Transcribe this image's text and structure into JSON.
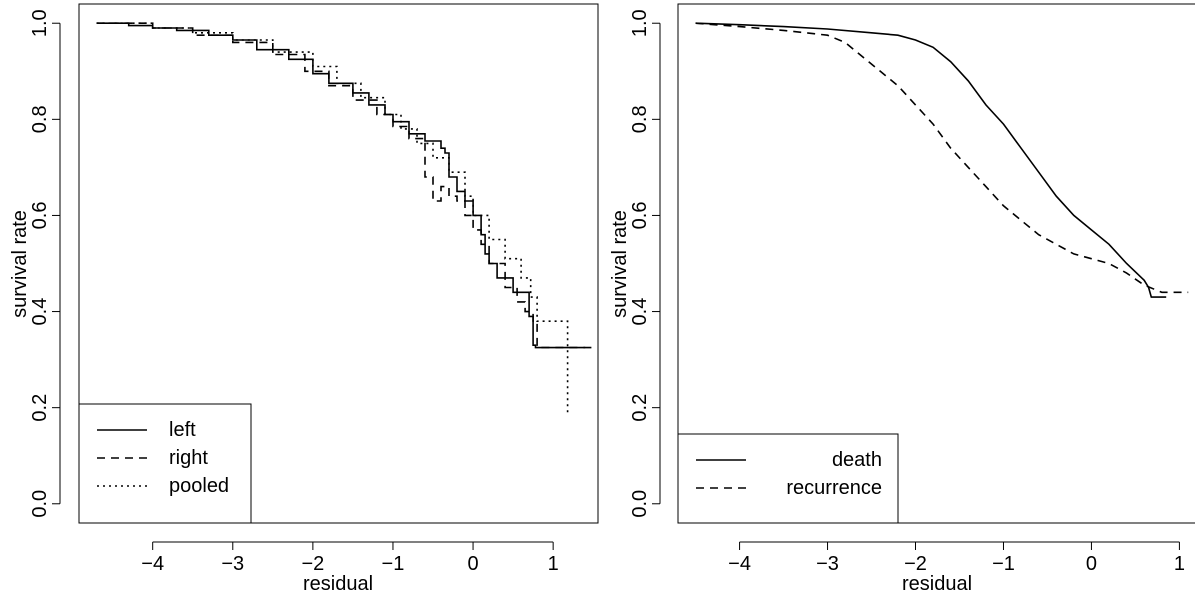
{
  "chart_data": [
    {
      "type": "line",
      "step": true,
      "title": "",
      "xlabel": "residual",
      "ylabel": "survival rate",
      "xlim": [
        -4.92,
        1.56
      ],
      "ylim": [
        -0.04,
        1.04
      ],
      "xticks": [
        -4,
        -3,
        -2,
        -1,
        0,
        1
      ],
      "yticks": [
        0.0,
        0.2,
        0.4,
        0.6,
        0.8,
        1.0
      ],
      "xtick_labels": [
        "−4",
        "−3",
        "−2",
        "−1",
        "0",
        "1"
      ],
      "ytick_labels": [
        "0.0",
        "0.2",
        "0.4",
        "0.6",
        "0.8",
        "1.0"
      ],
      "grid": false,
      "legend_position": "bottom-left",
      "legend_align": "left",
      "series": [
        {
          "name": "left",
          "style": "solid",
          "x": [
            -4.7,
            -4.3,
            -4.0,
            -3.7,
            -3.3,
            -3.0,
            -2.7,
            -2.3,
            -2.0,
            -1.8,
            -1.5,
            -1.3,
            -1.1,
            -1.0,
            -0.8,
            -0.6,
            -0.4,
            -0.35,
            -0.3,
            -0.2,
            -0.1,
            0.0,
            0.1,
            0.15,
            0.2,
            0.3,
            0.5,
            0.7,
            0.75,
            0.78,
            1.1,
            1.4
          ],
          "y": [
            1.0,
            0.995,
            0.99,
            0.985,
            0.975,
            0.965,
            0.945,
            0.925,
            0.895,
            0.875,
            0.855,
            0.83,
            0.81,
            0.795,
            0.77,
            0.755,
            0.74,
            0.73,
            0.68,
            0.65,
            0.63,
            0.6,
            0.56,
            0.52,
            0.5,
            0.47,
            0.44,
            0.39,
            0.33,
            0.325,
            0.325,
            0.325
          ]
        },
        {
          "name": "right",
          "style": "dashed",
          "x": [
            -4.7,
            -4.0,
            -3.5,
            -3.0,
            -2.5,
            -2.1,
            -1.8,
            -1.5,
            -1.2,
            -1.0,
            -0.8,
            -0.6,
            -0.5,
            -0.4,
            -0.3,
            -0.2,
            -0.1,
            0.0,
            0.1,
            0.2,
            0.4,
            0.55,
            0.65,
            0.75,
            0.8,
            1.5
          ],
          "y": [
            1.0,
            0.99,
            0.975,
            0.96,
            0.935,
            0.9,
            0.87,
            0.84,
            0.81,
            0.785,
            0.76,
            0.68,
            0.63,
            0.66,
            0.64,
            0.63,
            0.6,
            0.57,
            0.54,
            0.5,
            0.45,
            0.42,
            0.4,
            0.375,
            0.325,
            0.325
          ]
        },
        {
          "name": "pooled",
          "style": "dotted",
          "x": [
            -4.7,
            -4.0,
            -3.5,
            -3.0,
            -2.5,
            -2.0,
            -1.7,
            -1.4,
            -1.1,
            -0.9,
            -0.7,
            -0.5,
            -0.3,
            -0.1,
            0.0,
            0.2,
            0.4,
            0.6,
            0.72,
            0.8,
            1.18,
            1.18
          ],
          "y": [
            1.0,
            0.99,
            0.98,
            0.965,
            0.94,
            0.91,
            0.875,
            0.845,
            0.81,
            0.78,
            0.75,
            0.72,
            0.69,
            0.64,
            0.6,
            0.55,
            0.51,
            0.47,
            0.43,
            0.38,
            0.38,
            0.19
          ]
        }
      ]
    },
    {
      "type": "line",
      "title": "",
      "xlabel": "residual",
      "ylabel": "survival rate",
      "xlim": [
        -4.7,
        1.2
      ],
      "ylim": [
        -0.04,
        1.04
      ],
      "xticks": [
        -4,
        -3,
        -2,
        -1,
        0,
        1
      ],
      "yticks": [
        0.0,
        0.2,
        0.4,
        0.6,
        0.8,
        1.0
      ],
      "xtick_labels": [
        "−4",
        "−3",
        "−2",
        "−1",
        "0",
        "1"
      ],
      "ytick_labels": [
        "0.0",
        "0.2",
        "0.4",
        "0.6",
        "0.8",
        "1.0"
      ],
      "grid": false,
      "legend_position": "bottom-left",
      "legend_align": "right",
      "series": [
        {
          "name": "death",
          "style": "solid",
          "x": [
            -4.5,
            -4.0,
            -3.5,
            -3.0,
            -2.5,
            -2.2,
            -2.0,
            -1.8,
            -1.6,
            -1.4,
            -1.2,
            -1.0,
            -0.8,
            -0.6,
            -0.4,
            -0.2,
            0.0,
            0.2,
            0.4,
            0.6,
            0.65,
            0.68,
            0.85
          ],
          "y": [
            1.0,
            0.997,
            0.993,
            0.988,
            0.98,
            0.975,
            0.965,
            0.95,
            0.92,
            0.88,
            0.83,
            0.79,
            0.74,
            0.69,
            0.64,
            0.6,
            0.57,
            0.54,
            0.5,
            0.465,
            0.45,
            0.43,
            0.43
          ]
        },
        {
          "name": "recurrence",
          "style": "dashed",
          "x": [
            -4.5,
            -4.0,
            -3.5,
            -3.0,
            -2.8,
            -2.6,
            -2.4,
            -2.2,
            -2.0,
            -1.8,
            -1.6,
            -1.4,
            -1.2,
            -1.0,
            -0.8,
            -0.6,
            -0.4,
            -0.2,
            0.0,
            0.2,
            0.4,
            0.6,
            0.8,
            1.1
          ],
          "y": [
            1.0,
            0.993,
            0.985,
            0.975,
            0.96,
            0.93,
            0.9,
            0.87,
            0.83,
            0.79,
            0.74,
            0.7,
            0.66,
            0.62,
            0.59,
            0.56,
            0.54,
            0.52,
            0.51,
            0.5,
            0.48,
            0.455,
            0.44,
            0.44
          ]
        }
      ]
    }
  ]
}
